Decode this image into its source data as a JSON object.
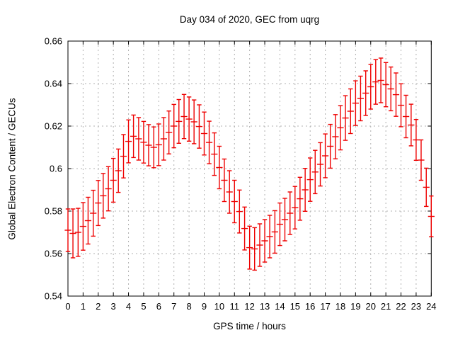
{
  "page": {
    "background": "#ffffff"
  },
  "colors": {
    "series": "#ee0000",
    "grid": "#b0b0b0",
    "axis": "#000000",
    "text": "#000000"
  },
  "chart_data": {
    "type": "scatter",
    "style": "yerrorbars",
    "title": "Day 034 of 2020, GEC from uqrg",
    "xlabel": "GPS time / hours",
    "ylabel": "Global Electron Content / GECUs",
    "xlim": [
      0,
      24
    ],
    "ylim": [
      0.54,
      0.66
    ],
    "grid": true,
    "legend": "none",
    "xticks": [
      0,
      1,
      2,
      3,
      4,
      5,
      6,
      7,
      8,
      9,
      10,
      11,
      12,
      13,
      14,
      15,
      16,
      17,
      18,
      19,
      20,
      21,
      22,
      23,
      24
    ],
    "xtick_labels": [
      "0",
      "1",
      "2",
      "3",
      "4",
      "5",
      "6",
      "7",
      "8",
      "9",
      "10",
      "11",
      "12",
      "13",
      "14",
      "15",
      "16",
      "17",
      "18",
      "19",
      "20",
      "21",
      "22",
      "23",
      "24"
    ],
    "yticks": [
      0.54,
      0.56,
      0.58,
      0.6,
      0.62,
      0.64,
      0.66
    ],
    "ytick_labels": [
      "0.54",
      "0.56",
      "0.58",
      "0.6",
      "0.62",
      "0.64",
      "0.66"
    ],
    "x": [
      0,
      0.33,
      0.67,
      1,
      1.33,
      1.67,
      2,
      2.33,
      2.67,
      3,
      3.33,
      3.67,
      4,
      4.33,
      4.67,
      5,
      5.33,
      5.67,
      6,
      6.33,
      6.67,
      7,
      7.33,
      7.67,
      8,
      8.33,
      8.67,
      9,
      9.33,
      9.67,
      10,
      10.33,
      10.67,
      11,
      11.33,
      11.67,
      12,
      12.33,
      12.67,
      13,
      13.33,
      13.67,
      14,
      14.33,
      14.67,
      15,
      15.33,
      15.67,
      16,
      16.33,
      16.67,
      17,
      17.33,
      17.67,
      18,
      18.33,
      18.67,
      19,
      19.33,
      19.67,
      20,
      20.33,
      20.67,
      21,
      21.33,
      21.67,
      22,
      22.33,
      22.67,
      23,
      23.33,
      23.67,
      24
    ],
    "y": [
      0.571,
      0.5695,
      0.57,
      0.5728,
      0.5755,
      0.579,
      0.5838,
      0.5872,
      0.5905,
      0.5945,
      0.599,
      0.6058,
      0.6128,
      0.6152,
      0.614,
      0.6124,
      0.611,
      0.61,
      0.6112,
      0.614,
      0.617,
      0.62,
      0.6222,
      0.6245,
      0.6233,
      0.622,
      0.6198,
      0.6165,
      0.6123,
      0.6068,
      0.6005,
      0.5945,
      0.589,
      0.5845,
      0.5798,
      0.5718,
      0.5628,
      0.5622,
      0.564,
      0.566,
      0.568,
      0.5702,
      0.5738,
      0.576,
      0.579,
      0.5816,
      0.5858,
      0.59,
      0.5948,
      0.5984,
      0.602,
      0.606,
      0.6105,
      0.615,
      0.6192,
      0.6238,
      0.627,
      0.6308,
      0.633,
      0.6355,
      0.6385,
      0.6408,
      0.6415,
      0.6395,
      0.6375,
      0.6348,
      0.6298,
      0.6245,
      0.6205,
      0.6135,
      0.604,
      0.5912,
      0.5775
    ],
    "yerr": [
      0.01,
      0.0115,
      0.0113,
      0.0112,
      0.011,
      0.0108,
      0.0106,
      0.0105,
      0.0104,
      0.0103,
      0.0102,
      0.0102,
      0.0101,
      0.01,
      0.01,
      0.0098,
      0.0097,
      0.0096,
      0.0098,
      0.01,
      0.0101,
      0.0102,
      0.0103,
      0.0104,
      0.0104,
      0.0103,
      0.0102,
      0.0101,
      0.01,
      0.01,
      0.01,
      0.01,
      0.01,
      0.01,
      0.0101,
      0.0101,
      0.0101,
      0.01,
      0.01,
      0.01,
      0.01,
      0.01,
      0.01,
      0.01,
      0.01,
      0.01,
      0.0101,
      0.0101,
      0.0102,
      0.0102,
      0.0102,
      0.0103,
      0.0103,
      0.0104,
      0.0104,
      0.0105,
      0.0105,
      0.0105,
      0.0105,
      0.0105,
      0.0105,
      0.0105,
      0.0105,
      0.0104,
      0.0103,
      0.0102,
      0.0101,
      0.01,
      0.0098,
      0.0096,
      0.0095,
      0.009,
      0.0096
    ]
  }
}
